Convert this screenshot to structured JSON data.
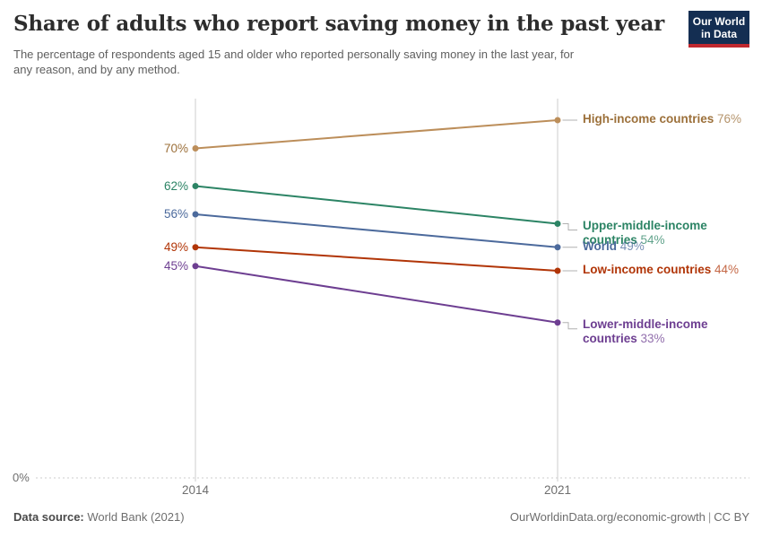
{
  "header": {
    "logo": {
      "line1": "Our World",
      "line2": "in Data",
      "bg_color": "#142e52",
      "accent_color": "#c0282e"
    }
  },
  "chart_data": {
    "type": "line",
    "subtype": "slope",
    "title": "Share of adults who report saving money in the past year",
    "subtitle": "The percentage of respondents aged 15 and older who reported personally saving money in the last year, for any reason, and by any method.",
    "x": [
      "2014",
      "2021"
    ],
    "series": [
      {
        "name": "High-income countries",
        "label_lines": [
          "High-income countries"
        ],
        "values": [
          70,
          76
        ],
        "color": "#BC8E5A",
        "text_color": "#9C703A"
      },
      {
        "name": "Upper-middle-income countries",
        "label_lines": [
          "Upper-middle-income",
          "countries"
        ],
        "values": [
          62,
          54
        ],
        "color": "#2C8465",
        "text_color": "#2C8465"
      },
      {
        "name": "World",
        "label_lines": [
          "World"
        ],
        "values": [
          56,
          49
        ],
        "color": "#4C6A9C",
        "text_color": "#4C6A9C"
      },
      {
        "name": "Low-income countries",
        "label_lines": [
          "Low-income countries"
        ],
        "values": [
          49,
          44
        ],
        "color": "#B13507",
        "text_color": "#B13507"
      },
      {
        "name": "Lower-middle-income countries",
        "label_lines": [
          "Lower-middle-income",
          "countries"
        ],
        "values": [
          45,
          33
        ],
        "color": "#6D3E91",
        "text_color": "#6D3E91"
      }
    ],
    "ylim": [
      0,
      80
    ],
    "axis": {
      "zero_label": "0%",
      "grid": "zero-line-only",
      "legend_position": "right-inline-labels"
    },
    "colors": {
      "axis_line": "#cdcdcd",
      "zero_dotted_line": "#cdcdcd",
      "connector": "#b0b0b0",
      "tick_text": "#6e6e6e"
    }
  },
  "footer": {
    "datasource_label": "Data source:",
    "datasource_value": "World Bank (2021)",
    "url": "OurWorldinData.org/economic-growth",
    "separator": "|",
    "license": "CC BY"
  }
}
